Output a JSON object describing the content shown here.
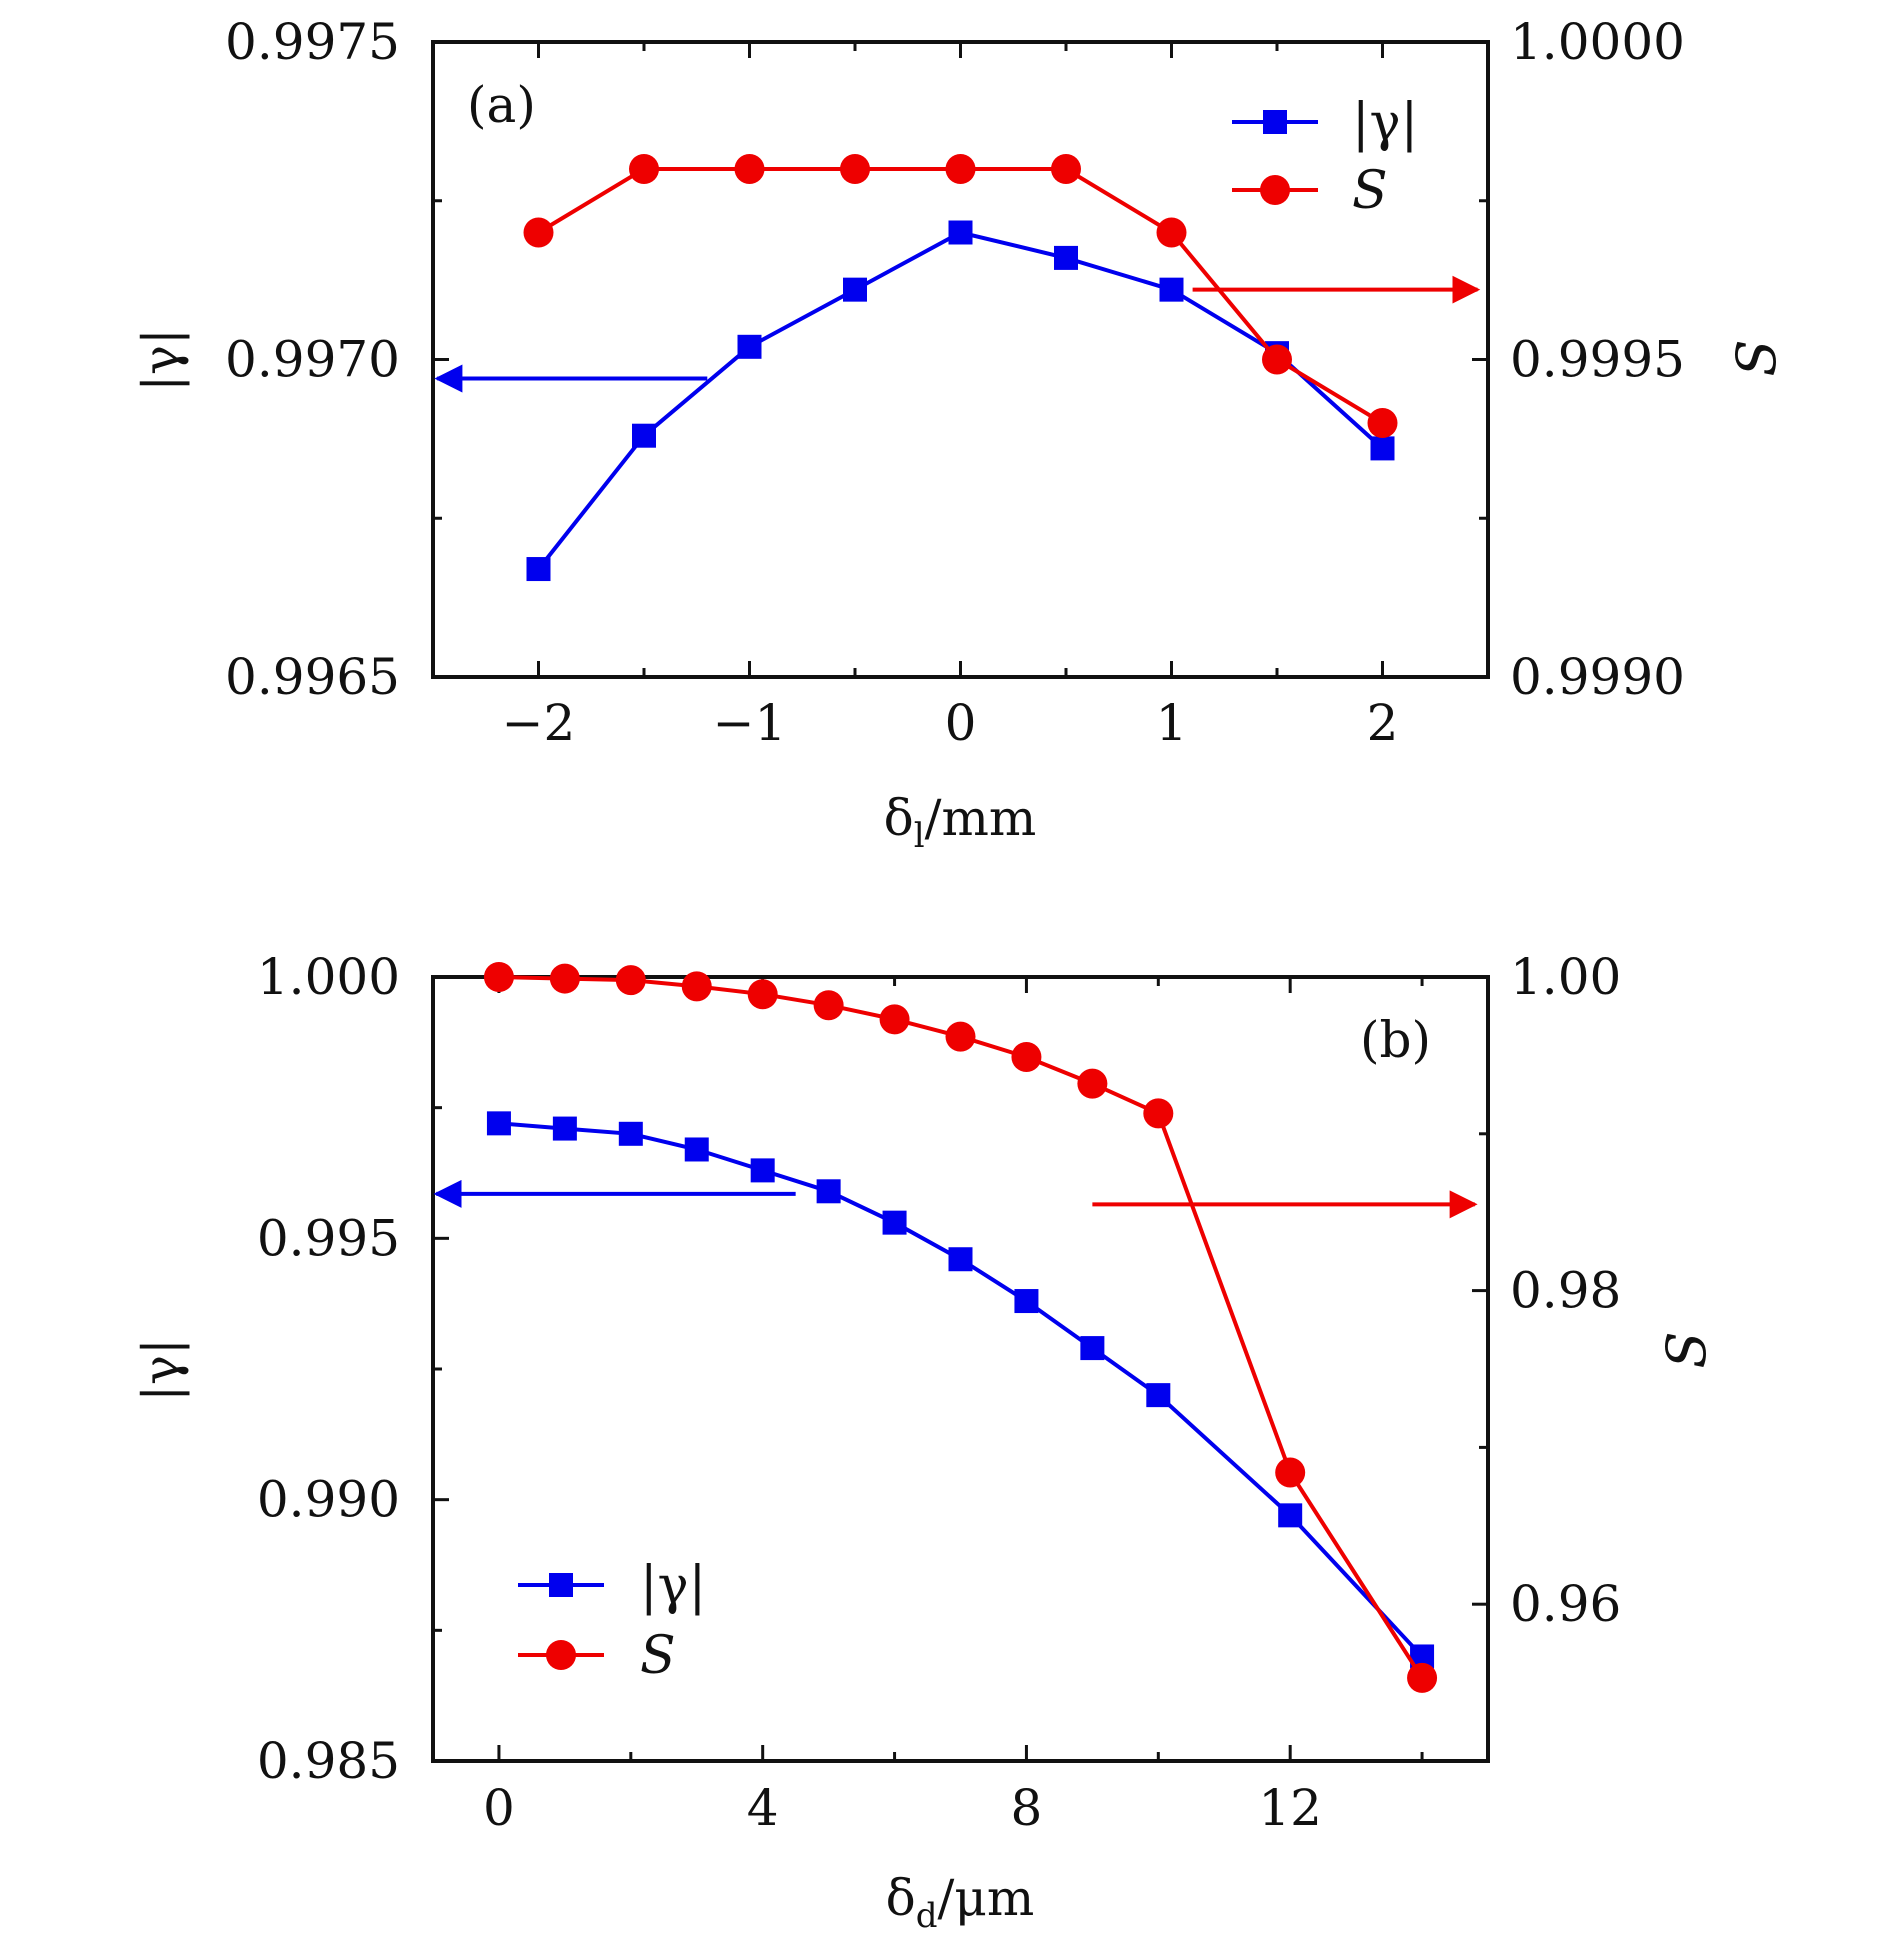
{
  "chart_data": [
    {
      "type": "line",
      "panel_label": "(a)",
      "xlabel": "δl/mm",
      "xlabel_main": "δ",
      "xlabel_sub": "l",
      "xlabel_rest": "/mm",
      "ylabel_left": "|γ|",
      "ylabel_right": "S",
      "xlim": [
        -2.5,
        2.5
      ],
      "ylim_left": [
        0.9965,
        0.9975
      ],
      "ylim_right": [
        0.999,
        1.0
      ],
      "x_ticks": [
        -2,
        -1,
        0,
        1,
        2
      ],
      "x_tick_labels": [
        "−2",
        "−1",
        "0",
        "1",
        "2"
      ],
      "y_left_ticks": [
        0.9965,
        0.997,
        0.9975
      ],
      "y_left_tick_labels": [
        "0.9965",
        "0.9970",
        "0.9975"
      ],
      "y_right_ticks": [
        0.999,
        0.9995,
        1.0
      ],
      "y_right_tick_labels": [
        "0.9990",
        "0.9995",
        "1.0000"
      ],
      "legend_position": "top-right",
      "series": [
        {
          "name": "|γ|",
          "axis": "left",
          "color": "#0000ee",
          "marker": "square",
          "x": [
            -2,
            -1.5,
            -1,
            -0.5,
            0,
            0.5,
            1,
            1.5,
            2
          ],
          "values": [
            0.99667,
            0.99688,
            0.99702,
            0.99711,
            0.9972,
            0.99716,
            0.99711,
            0.99701,
            0.99686
          ]
        },
        {
          "name": "S",
          "axis": "right",
          "color": "#ee0000",
          "marker": "circle",
          "x": [
            -2,
            -1.5,
            -1,
            -0.5,
            0,
            0.5,
            1,
            1.5,
            2
          ],
          "values": [
            0.9997,
            0.9998,
            0.9998,
            0.9998,
            0.9998,
            0.9998,
            0.9997,
            0.9995,
            0.9994
          ]
        }
      ],
      "arrows": [
        {
          "series": "|γ|",
          "direction": "left",
          "x_from": -1.2,
          "x_to": -2.48,
          "y_left": 0.99697
        },
        {
          "series": "S",
          "direction": "right",
          "x_from": 1.1,
          "x_to": 2.45,
          "y_left": 0.99711
        }
      ]
    },
    {
      "type": "line",
      "panel_label": "(b)",
      "xlabel": "δd/μm",
      "xlabel_main": "δ",
      "xlabel_sub": "d",
      "xlabel_rest": "/μm",
      "ylabel_left": "|γ|",
      "ylabel_right": "S",
      "xlim": [
        -1,
        15
      ],
      "ylim_left": [
        0.985,
        1.0
      ],
      "ylim_right": [
        0.95,
        1.0
      ],
      "x_ticks": [
        0,
        4,
        8,
        12
      ],
      "x_tick_labels": [
        "0",
        "4",
        "8",
        "12"
      ],
      "y_left_ticks": [
        0.985,
        0.99,
        0.995,
        1.0
      ],
      "y_left_tick_labels": [
        "0.985",
        "0.990",
        "0.995",
        "1.000"
      ],
      "y_right_ticks": [
        0.96,
        0.98,
        1.0
      ],
      "y_right_tick_labels": [
        "0.96",
        "0.98",
        "1.00"
      ],
      "legend_position": "bottom-left",
      "series": [
        {
          "name": "|γ|",
          "axis": "left",
          "color": "#0000ee",
          "marker": "square",
          "x": [
            0,
            1,
            2,
            3,
            4,
            5,
            6,
            7,
            8,
            9,
            10,
            12,
            14
          ],
          "values": [
            0.9972,
            0.9971,
            0.997,
            0.9967,
            0.9963,
            0.9959,
            0.9953,
            0.9946,
            0.9938,
            0.9929,
            0.992,
            0.9897,
            0.987
          ]
        },
        {
          "name": "S",
          "axis": "right",
          "color": "#ee0000",
          "marker": "circle",
          "x": [
            0,
            1,
            2,
            3,
            4,
            5,
            6,
            7,
            8,
            9,
            10,
            12,
            14
          ],
          "values": [
            1.0,
            0.9999,
            0.9998,
            0.9994,
            0.9989,
            0.9982,
            0.9973,
            0.9962,
            0.9949,
            0.9932,
            0.9913,
            0.9684,
            0.9553
          ]
        }
      ],
      "arrows": [
        {
          "series": "|γ|",
          "direction": "left",
          "x_from": 4.5,
          "x_to": -0.95,
          "y_left": 0.99585
        },
        {
          "series": "S",
          "direction": "right",
          "x_from": 9.0,
          "x_to": 14.8,
          "y_left": 0.99565
        }
      ]
    }
  ]
}
